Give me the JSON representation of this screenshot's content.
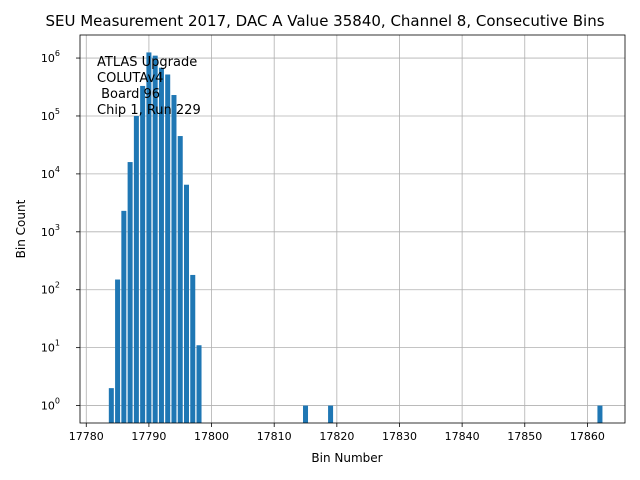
{
  "chart_data": {
    "type": "bar",
    "title": "SEU Measurement 2017, DAC A Value 35840, Channel 8, Consecutive Bins",
    "xlabel": "Bin Number",
    "ylabel": "Bin Count",
    "xlim": [
      17779,
      17866
    ],
    "ylim": [
      0.5,
      2500000
    ],
    "yscale": "log",
    "grid": true,
    "bar_color": "#1f77b4",
    "x_ticks": [
      17780,
      17790,
      17800,
      17810,
      17820,
      17830,
      17840,
      17850,
      17860
    ],
    "y_ticks": [
      {
        "value": 1,
        "label": "10",
        "exp": "0"
      },
      {
        "value": 10,
        "label": "10",
        "exp": "1"
      },
      {
        "value": 100,
        "label": "10",
        "exp": "2"
      },
      {
        "value": 1000,
        "label": "10",
        "exp": "3"
      },
      {
        "value": 10000,
        "label": "10",
        "exp": "4"
      },
      {
        "value": 100000,
        "label": "10",
        "exp": "5"
      },
      {
        "value": 1000000,
        "label": "10",
        "exp": "6"
      }
    ],
    "annotation_lines": [
      "ATLAS Upgrade",
      "COLUTAv4",
      " Board 96",
      "Chip 1, Run 229"
    ],
    "points": [
      {
        "x": 17784,
        "y": 2
      },
      {
        "x": 17785,
        "y": 150
      },
      {
        "x": 17786,
        "y": 2300
      },
      {
        "x": 17787,
        "y": 16000
      },
      {
        "x": 17788,
        "y": 100000
      },
      {
        "x": 17789,
        "y": 330000
      },
      {
        "x": 17790,
        "y": 1250000
      },
      {
        "x": 17791,
        "y": 1100000
      },
      {
        "x": 17792,
        "y": 680000
      },
      {
        "x": 17793,
        "y": 520000
      },
      {
        "x": 17794,
        "y": 230000
      },
      {
        "x": 17795,
        "y": 45000
      },
      {
        "x": 17796,
        "y": 6500
      },
      {
        "x": 17797,
        "y": 180
      },
      {
        "x": 17798,
        "y": 11
      },
      {
        "x": 17815,
        "y": 1
      },
      {
        "x": 17819,
        "y": 1
      },
      {
        "x": 17862,
        "y": 1
      }
    ]
  }
}
